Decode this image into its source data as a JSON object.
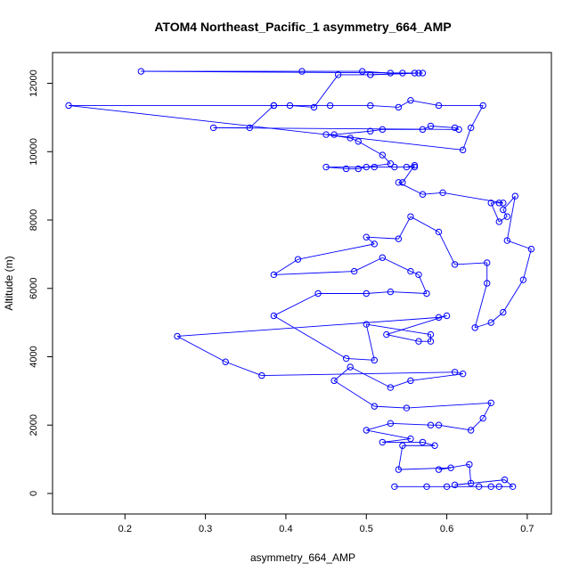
{
  "chart_data": {
    "type": "scatter",
    "title": "ATOM4 Northeast_Pacific_1 asymmetry_664_AMP",
    "xlabel": "asymmetry_664_AMP",
    "ylabel": "Altitude (m)",
    "xlim": [
      0.11,
      0.73
    ],
    "ylim": [
      -600,
      12900
    ],
    "xticks": [
      0.2,
      0.3,
      0.4,
      0.5,
      0.6,
      0.7
    ],
    "xtick_labels": [
      "0.2",
      "0.3",
      "0.4",
      "0.5",
      "0.6",
      "0.7"
    ],
    "yticks": [
      0,
      2000,
      4000,
      6000,
      8000,
      10000,
      12000
    ],
    "ytick_labels": [
      "0",
      "2000",
      "4000",
      "6000",
      "8000",
      "10000",
      "12000"
    ],
    "grid": false,
    "series_color": "#0000ff",
    "marker": "open-circle",
    "connected": true,
    "points": [
      [
        0.535,
        200
      ],
      [
        0.575,
        200
      ],
      [
        0.6,
        200
      ],
      [
        0.64,
        200
      ],
      [
        0.655,
        200
      ],
      [
        0.665,
        200
      ],
      [
        0.682,
        200
      ],
      [
        0.672,
        400
      ],
      [
        0.61,
        250
      ],
      [
        0.63,
        300
      ],
      [
        0.628,
        850
      ],
      [
        0.59,
        700
      ],
      [
        0.605,
        750
      ],
      [
        0.54,
        700
      ],
      [
        0.545,
        1400
      ],
      [
        0.585,
        1400
      ],
      [
        0.57,
        1500
      ],
      [
        0.52,
        1500
      ],
      [
        0.555,
        1600
      ],
      [
        0.5,
        1850
      ],
      [
        0.53,
        2050
      ],
      [
        0.58,
        2000
      ],
      [
        0.59,
        2000
      ],
      [
        0.63,
        1850
      ],
      [
        0.645,
        2200
      ],
      [
        0.655,
        2650
      ],
      [
        0.55,
        2500
      ],
      [
        0.51,
        2550
      ],
      [
        0.46,
        3300
      ],
      [
        0.48,
        3700
      ],
      [
        0.53,
        3100
      ],
      [
        0.555,
        3300
      ],
      [
        0.62,
        3500
      ],
      [
        0.61,
        3550
      ],
      [
        0.37,
        3450
      ],
      [
        0.325,
        3850
      ],
      [
        0.265,
        4600
      ],
      [
        0.59,
        5150
      ],
      [
        0.6,
        5200
      ],
      [
        0.525,
        4650
      ],
      [
        0.565,
        4450
      ],
      [
        0.58,
        4450
      ],
      [
        0.58,
        4650
      ],
      [
        0.5,
        4950
      ],
      [
        0.51,
        3900
      ],
      [
        0.475,
        3950
      ],
      [
        0.385,
        5200
      ],
      [
        0.44,
        5850
      ],
      [
        0.5,
        5850
      ],
      [
        0.53,
        5900
      ],
      [
        0.575,
        5850
      ],
      [
        0.565,
        6400
      ],
      [
        0.555,
        6500
      ],
      [
        0.52,
        6900
      ],
      [
        0.485,
        6500
      ],
      [
        0.385,
        6400
      ],
      [
        0.415,
        6850
      ],
      [
        0.51,
        7300
      ],
      [
        0.5,
        7500
      ],
      [
        0.54,
        7450
      ],
      [
        0.555,
        8100
      ],
      [
        0.59,
        7650
      ],
      [
        0.61,
        6700
      ],
      [
        0.65,
        6750
      ],
      [
        0.65,
        6150
      ],
      [
        0.635,
        4850
      ],
      [
        0.655,
        5000
      ],
      [
        0.67,
        5300
      ],
      [
        0.695,
        6250
      ],
      [
        0.705,
        7150
      ],
      [
        0.675,
        7400
      ],
      [
        0.685,
        8700
      ],
      [
        0.67,
        8300
      ],
      [
        0.675,
        8100
      ],
      [
        0.665,
        7950
      ],
      [
        0.655,
        8500
      ],
      [
        0.665,
        8500
      ],
      [
        0.67,
        8500
      ],
      [
        0.595,
        8800
      ],
      [
        0.57,
        8750
      ],
      [
        0.54,
        9100
      ],
      [
        0.545,
        9100
      ],
      [
        0.56,
        9600
      ],
      [
        0.55,
        9550
      ],
      [
        0.56,
        9550
      ],
      [
        0.535,
        9550
      ],
      [
        0.51,
        9550
      ],
      [
        0.45,
        9550
      ],
      [
        0.475,
        9500
      ],
      [
        0.49,
        9500
      ],
      [
        0.5,
        9550
      ],
      [
        0.53,
        9650
      ],
      [
        0.52,
        9900
      ],
      [
        0.49,
        10300
      ],
      [
        0.48,
        10400
      ],
      [
        0.45,
        10500
      ],
      [
        0.46,
        10500
      ],
      [
        0.505,
        10600
      ],
      [
        0.52,
        10650
      ],
      [
        0.57,
        10650
      ],
      [
        0.58,
        10750
      ],
      [
        0.61,
        10700
      ],
      [
        0.615,
        10650
      ],
      [
        0.31,
        10700
      ],
      [
        0.355,
        10700
      ],
      [
        0.385,
        11350
      ],
      [
        0.455,
        11350
      ],
      [
        0.505,
        11350
      ],
      [
        0.54,
        11300
      ],
      [
        0.555,
        11500
      ],
      [
        0.59,
        11350
      ],
      [
        0.645,
        11350
      ],
      [
        0.63,
        10700
      ],
      [
        0.62,
        10050
      ],
      [
        0.13,
        11350
      ],
      [
        0.385,
        11350
      ],
      [
        0.405,
        11350
      ],
      [
        0.435,
        11300
      ],
      [
        0.465,
        12250
      ],
      [
        0.505,
        12250
      ],
      [
        0.56,
        12300
      ],
      [
        0.57,
        12300
      ],
      [
        0.545,
        12300
      ],
      [
        0.53,
        12300
      ],
      [
        0.495,
        12350
      ],
      [
        0.42,
        12350
      ],
      [
        0.22,
        12350
      ],
      [
        0.565,
        12300
      ],
      [
        0.505,
        12250
      ]
    ]
  }
}
